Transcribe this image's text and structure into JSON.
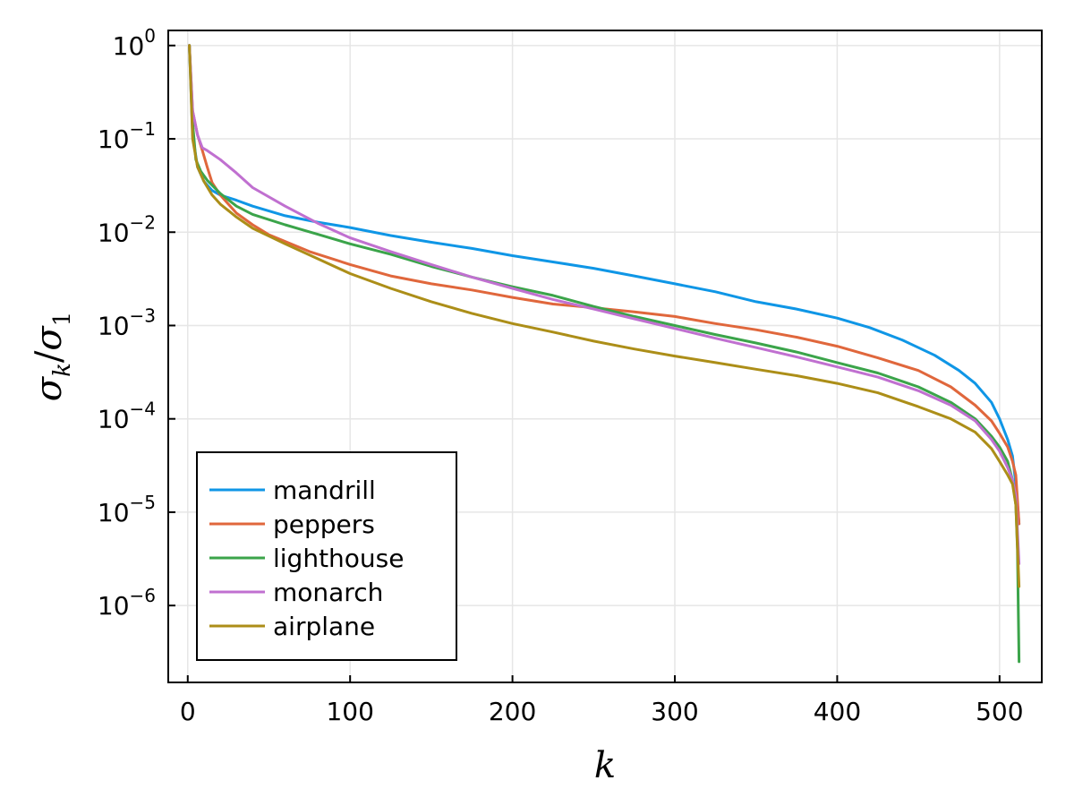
{
  "chart_data": {
    "type": "line",
    "title": "",
    "xlabel": "k",
    "ylabel": {
      "main": "σ",
      "sub1": "k",
      "slash": "/",
      "main2": "σ",
      "sub2": "1"
    },
    "xlim": [
      -12,
      526
    ],
    "ylim": [
      1.5e-07,
      1.45
    ],
    "yscale": "log",
    "grid": true,
    "legend_position": "bottom-left",
    "xticks": [
      {
        "value": 0,
        "label": "0"
      },
      {
        "value": 100,
        "label": "100"
      },
      {
        "value": 200,
        "label": "200"
      },
      {
        "value": 300,
        "label": "300"
      },
      {
        "value": 400,
        "label": "400"
      },
      {
        "value": 500,
        "label": "500"
      }
    ],
    "yticks": [
      {
        "value": 1,
        "base": "10",
        "exp": "0"
      },
      {
        "value": 0.1,
        "base": "10",
        "exp": "−1"
      },
      {
        "value": 0.01,
        "base": "10",
        "exp": "−2"
      },
      {
        "value": 0.001,
        "base": "10",
        "exp": "−3"
      },
      {
        "value": 0.0001,
        "base": "10",
        "exp": "−4"
      },
      {
        "value": 1e-05,
        "base": "10",
        "exp": "−5"
      },
      {
        "value": 1e-06,
        "base": "10",
        "exp": "−6"
      }
    ],
    "series": [
      {
        "name": "mandrill",
        "color": "#0f96e6",
        "points": [
          [
            1,
            1.0
          ],
          [
            3,
            0.11
          ],
          [
            6,
            0.05
          ],
          [
            10,
            0.035
          ],
          [
            15,
            0.028
          ],
          [
            20,
            0.025
          ],
          [
            30,
            0.022
          ],
          [
            40,
            0.019
          ],
          [
            60,
            0.015
          ],
          [
            80,
            0.0128
          ],
          [
            100,
            0.0112
          ],
          [
            125,
            0.0092
          ],
          [
            150,
            0.0078
          ],
          [
            175,
            0.0067
          ],
          [
            200,
            0.0056
          ],
          [
            225,
            0.0048
          ],
          [
            250,
            0.0041
          ],
          [
            275,
            0.0034
          ],
          [
            300,
            0.0028
          ],
          [
            325,
            0.0023
          ],
          [
            350,
            0.0018
          ],
          [
            375,
            0.0015
          ],
          [
            400,
            0.0012
          ],
          [
            420,
            0.00095
          ],
          [
            440,
            0.0007
          ],
          [
            460,
            0.00048
          ],
          [
            475,
            0.00033
          ],
          [
            485,
            0.00024
          ],
          [
            495,
            0.00015
          ],
          [
            500,
            0.0001
          ],
          [
            505,
            6e-05
          ],
          [
            508,
            4e-05
          ],
          [
            510,
            2e-05
          ],
          [
            512,
            7.5e-06
          ]
        ]
      },
      {
        "name": "peppers",
        "color": "#e0673c",
        "points": [
          [
            1,
            1.0
          ],
          [
            3,
            0.2
          ],
          [
            6,
            0.11
          ],
          [
            9,
            0.075
          ],
          [
            12,
            0.05
          ],
          [
            15,
            0.034
          ],
          [
            20,
            0.025
          ],
          [
            30,
            0.016
          ],
          [
            40,
            0.012
          ],
          [
            50,
            0.0094
          ],
          [
            75,
            0.0062
          ],
          [
            100,
            0.0045
          ],
          [
            125,
            0.0034
          ],
          [
            150,
            0.0028
          ],
          [
            175,
            0.0024
          ],
          [
            200,
            0.002
          ],
          [
            225,
            0.0017
          ],
          [
            250,
            0.00155
          ],
          [
            275,
            0.0014
          ],
          [
            300,
            0.00125
          ],
          [
            325,
            0.00105
          ],
          [
            350,
            0.0009
          ],
          [
            375,
            0.00075
          ],
          [
            400,
            0.0006
          ],
          [
            425,
            0.00045
          ],
          [
            450,
            0.00033
          ],
          [
            470,
            0.00022
          ],
          [
            485,
            0.00014
          ],
          [
            495,
            9.5e-05
          ],
          [
            500,
            7e-05
          ],
          [
            505,
            5e-05
          ],
          [
            508,
            3.5e-05
          ],
          [
            510,
            2.5e-05
          ],
          [
            512,
            7.5e-06
          ]
        ]
      },
      {
        "name": "lighthouse",
        "color": "#3ba44a",
        "points": [
          [
            1,
            1.0
          ],
          [
            3,
            0.15
          ],
          [
            5,
            0.06
          ],
          [
            8,
            0.045
          ],
          [
            12,
            0.036
          ],
          [
            20,
            0.026
          ],
          [
            30,
            0.019
          ],
          [
            40,
            0.0155
          ],
          [
            60,
            0.012
          ],
          [
            80,
            0.0095
          ],
          [
            100,
            0.0075
          ],
          [
            125,
            0.0058
          ],
          [
            150,
            0.0043
          ],
          [
            175,
            0.0033
          ],
          [
            200,
            0.0026
          ],
          [
            225,
            0.0021
          ],
          [
            250,
            0.0016
          ],
          [
            275,
            0.00125
          ],
          [
            300,
            0.001
          ],
          [
            325,
            0.0008
          ],
          [
            350,
            0.00065
          ],
          [
            375,
            0.00052
          ],
          [
            400,
            0.0004
          ],
          [
            425,
            0.00031
          ],
          [
            450,
            0.00022
          ],
          [
            470,
            0.00015
          ],
          [
            485,
            0.0001
          ],
          [
            495,
            6.5e-05
          ],
          [
            500,
            5e-05
          ],
          [
            505,
            3.5e-05
          ],
          [
            508,
            2.2e-05
          ],
          [
            510,
            1.2e-05
          ],
          [
            511,
            4e-06
          ],
          [
            512,
            2.5e-07
          ]
        ]
      },
      {
        "name": "monarch",
        "color": "#c070d0",
        "points": [
          [
            1,
            1.0
          ],
          [
            3,
            0.2
          ],
          [
            6,
            0.11
          ],
          [
            9,
            0.08
          ],
          [
            12,
            0.075
          ],
          [
            20,
            0.06
          ],
          [
            30,
            0.043
          ],
          [
            40,
            0.03
          ],
          [
            60,
            0.019
          ],
          [
            80,
            0.0125
          ],
          [
            100,
            0.0087
          ],
          [
            125,
            0.0062
          ],
          [
            150,
            0.0045
          ],
          [
            175,
            0.0033
          ],
          [
            200,
            0.0025
          ],
          [
            225,
            0.0019
          ],
          [
            250,
            0.0015
          ],
          [
            275,
            0.00118
          ],
          [
            300,
            0.00093
          ],
          [
            325,
            0.00073
          ],
          [
            350,
            0.00058
          ],
          [
            375,
            0.00046
          ],
          [
            400,
            0.00036
          ],
          [
            425,
            0.00028
          ],
          [
            450,
            0.0002
          ],
          [
            470,
            0.00014
          ],
          [
            485,
            9.5e-05
          ],
          [
            495,
            6e-05
          ],
          [
            500,
            4.5e-05
          ],
          [
            505,
            3e-05
          ],
          [
            508,
            2.2e-05
          ],
          [
            510,
            1.5e-05
          ],
          [
            512,
            2.8e-06
          ]
        ]
      },
      {
        "name": "airplane",
        "color": "#ac8e18",
        "points": [
          [
            1,
            1.0
          ],
          [
            3,
            0.1
          ],
          [
            6,
            0.05
          ],
          [
            10,
            0.035
          ],
          [
            15,
            0.025
          ],
          [
            20,
            0.02
          ],
          [
            30,
            0.0145
          ],
          [
            40,
            0.011
          ],
          [
            60,
            0.0075
          ],
          [
            80,
            0.0052
          ],
          [
            100,
            0.0036
          ],
          [
            125,
            0.0025
          ],
          [
            150,
            0.0018
          ],
          [
            175,
            0.00135
          ],
          [
            200,
            0.00105
          ],
          [
            225,
            0.00085
          ],
          [
            250,
            0.00068
          ],
          [
            275,
            0.00056
          ],
          [
            300,
            0.00047
          ],
          [
            325,
            0.0004
          ],
          [
            350,
            0.00034
          ],
          [
            375,
            0.00029
          ],
          [
            400,
            0.00024
          ],
          [
            425,
            0.00019
          ],
          [
            450,
            0.000135
          ],
          [
            470,
            0.0001
          ],
          [
            485,
            7.2e-05
          ],
          [
            495,
            4.8e-05
          ],
          [
            500,
            3.5e-05
          ],
          [
            505,
            2.5e-05
          ],
          [
            508,
            2e-05
          ],
          [
            510,
            1.2e-05
          ],
          [
            512,
            1.6e-06
          ]
        ]
      }
    ]
  }
}
